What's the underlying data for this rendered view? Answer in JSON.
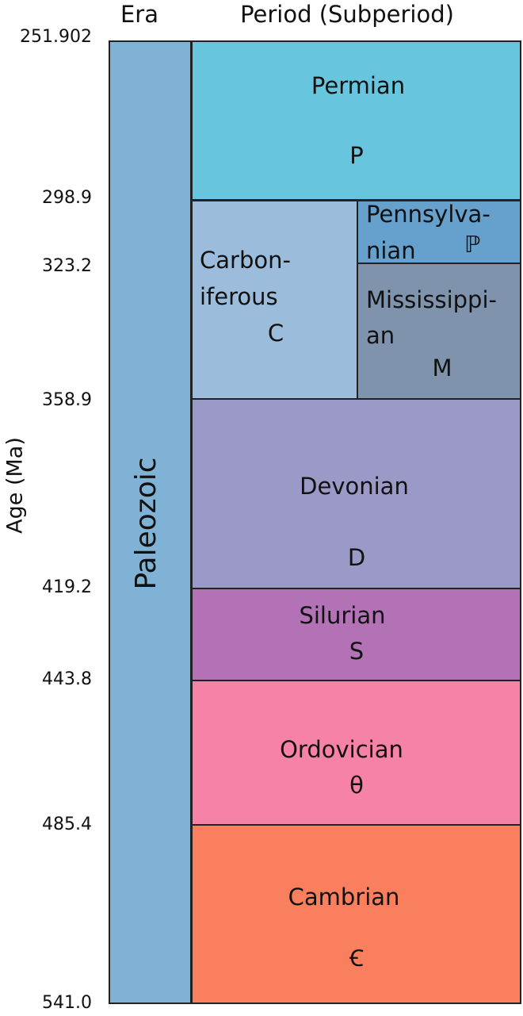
{
  "header": {
    "era": "Era",
    "period": "Period (Subperiod)"
  },
  "axis_label": "Age (Ma)",
  "ages": [
    "251.902",
    "298.9",
    "323.2",
    "358.9",
    "419.2",
    "443.8",
    "485.4",
    "541.0"
  ],
  "era": "Paleozoic",
  "periods": [
    {
      "name": "Permian",
      "symbol": "P"
    },
    {
      "name_lines": [
        "Carbon-",
        "iferous"
      ],
      "symbol": "C",
      "subperiods": [
        {
          "name_lines": [
            "Pennsylva-",
            "nian"
          ],
          "symbol": "ℙ"
        },
        {
          "name_lines": [
            "Mississippi-",
            "an"
          ],
          "symbol": "M"
        }
      ]
    },
    {
      "name": "Devonian",
      "symbol": "D"
    },
    {
      "name": "Silurian",
      "symbol": "S"
    },
    {
      "name": "Ordovician",
      "symbol": "θ"
    },
    {
      "name": "Cambrian",
      "symbol": "Ꞓ"
    }
  ]
}
